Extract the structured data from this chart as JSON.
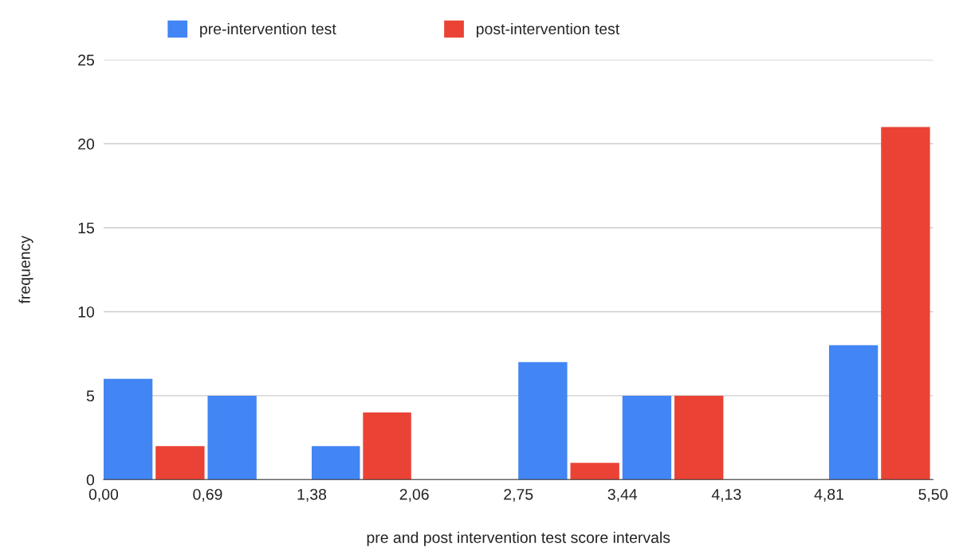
{
  "chart_data": {
    "type": "histogram",
    "xlabel": "pre and post intervention test score intervals",
    "ylabel": "frequency",
    "bins": [
      0,
      0.69,
      1.38,
      2.06,
      2.75,
      3.44,
      4.13,
      4.81,
      5.5
    ],
    "series": [
      {
        "name": "pre-intervention test",
        "color": "#4285f4",
        "values": [
          6,
          5,
          2,
          0,
          7,
          5,
          0,
          8
        ]
      },
      {
        "name": "post-intervention test",
        "color": "#ea4335",
        "values": [
          2,
          0,
          4,
          0,
          1,
          5,
          0,
          21
        ]
      }
    ],
    "xlim": [
      0,
      5.5
    ],
    "xticks": [
      {
        "value": 0,
        "label": "0,00"
      },
      {
        "value": 0.69,
        "label": "0,69"
      },
      {
        "value": 1.38,
        "label": "1,38"
      },
      {
        "value": 2.06,
        "label": "2,06"
      },
      {
        "value": 2.75,
        "label": "2,75"
      },
      {
        "value": 3.44,
        "label": "3,44"
      },
      {
        "value": 4.13,
        "label": "4,13"
      },
      {
        "value": 4.81,
        "label": "4,81"
      },
      {
        "value": 5.5,
        "label": "5,50"
      }
    ],
    "ylim": [
      0,
      25
    ],
    "yticks": [
      0,
      5,
      10,
      15,
      20,
      25
    ],
    "grid": "y",
    "legend": "top"
  }
}
